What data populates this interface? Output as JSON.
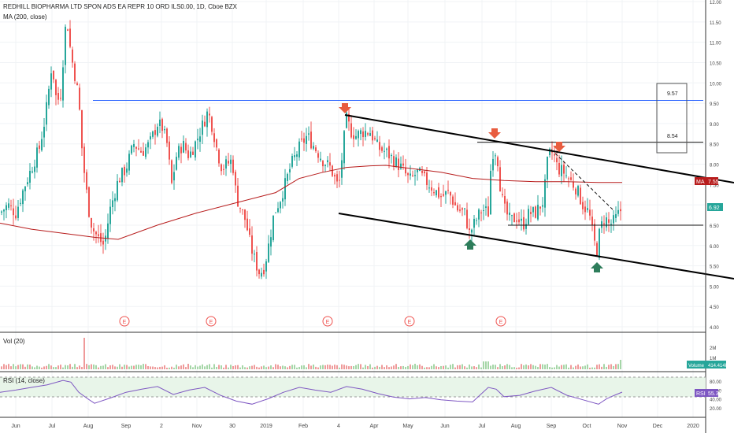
{
  "header": {
    "title": "REDHILL BIOPHARMA LTD SPON ADS EA REPR 10 ORD ILS0.00, 1D, Cboe BZX",
    "ma_label": "MA (200, close)",
    "vol_label": "Vol (20)",
    "rsi_label": "RSI (14, close)"
  },
  "colors": {
    "up": "#26a69a",
    "down": "#ef5350",
    "ma": "#b71c1c",
    "rsi": "#7e57c2",
    "level": "#1e88e5",
    "arrow_down": "#e85c3f",
    "arrow_up": "#2e7d5b"
  },
  "chart_data": {
    "type": "candlestick",
    "title": "REDHILL BIOPHARMA LTD SPON ADS EA REPR 10 ORD ILS0.00, 1D, Cboe BZX",
    "x_labels": [
      "Jun",
      "Jul",
      "Aug",
      "Sep",
      "2",
      "Nov",
      "30",
      "2019",
      "Feb",
      "4",
      "Apr",
      "May",
      "Jun",
      "Jul",
      "Aug",
      "Sep",
      "Oct",
      "Nov",
      "Dec",
      "2020"
    ],
    "y_ticks": [
      "12.00",
      "11.50",
      "11.00",
      "10.50",
      "10.00",
      "9.50",
      "9.00",
      "8.50",
      "8.00",
      "7.50",
      "7.00",
      "6.50",
      "6.00",
      "5.50",
      "5.00",
      "4.50",
      "4.00"
    ],
    "ylim": [
      4.0,
      12.0
    ],
    "close_path": [
      [
        0,
        6.8
      ],
      [
        10,
        7.0
      ],
      [
        20,
        6.8
      ],
      [
        30,
        7.4
      ],
      [
        40,
        7.9
      ],
      [
        50,
        8.4
      ],
      [
        56,
        9.0
      ],
      [
        60,
        9.5
      ],
      [
        66,
        10.5
      ],
      [
        72,
        9.5
      ],
      [
        78,
        9.8
      ],
      [
        82,
        11.3
      ],
      [
        86,
        11.4
      ],
      [
        90,
        10.7
      ],
      [
        95,
        10.2
      ],
      [
        100,
        9.6
      ],
      [
        104,
        8.4
      ],
      [
        108,
        7.6
      ],
      [
        114,
        6.7
      ],
      [
        118,
        6.4
      ],
      [
        124,
        6.2
      ],
      [
        132,
        6.0
      ],
      [
        140,
        6.9
      ],
      [
        150,
        7.6
      ],
      [
        160,
        7.9
      ],
      [
        170,
        8.5
      ],
      [
        180,
        8.3
      ],
      [
        190,
        8.5
      ],
      [
        200,
        9.0
      ],
      [
        206,
        8.9
      ],
      [
        212,
        8.5
      ],
      [
        218,
        7.5
      ],
      [
        224,
        8.2
      ],
      [
        232,
        8.5
      ],
      [
        240,
        8.2
      ],
      [
        250,
        8.6
      ],
      [
        258,
        9.0
      ],
      [
        264,
        9.3
      ],
      [
        270,
        8.9
      ],
      [
        276,
        8.3
      ],
      [
        282,
        7.9
      ],
      [
        288,
        8.0
      ],
      [
        295,
        8.1
      ],
      [
        300,
        7.2
      ],
      [
        306,
        6.9
      ],
      [
        312,
        6.6
      ],
      [
        318,
        6.0
      ],
      [
        324,
        5.6
      ],
      [
        330,
        5.3
      ],
      [
        336,
        5.5
      ],
      [
        342,
        6.1
      ],
      [
        348,
        6.8
      ],
      [
        355,
        7.1
      ],
      [
        362,
        7.5
      ],
      [
        370,
        8.0
      ],
      [
        380,
        8.4
      ],
      [
        390,
        8.7
      ],
      [
        400,
        8.4
      ],
      [
        410,
        8.1
      ],
      [
        420,
        7.9
      ],
      [
        430,
        7.4
      ],
      [
        436,
        8.5
      ],
      [
        440,
        9.1
      ],
      [
        446,
        8.8
      ],
      [
        452,
        8.7
      ],
      [
        460,
        8.8
      ],
      [
        470,
        8.8
      ],
      [
        480,
        8.4
      ],
      [
        490,
        8.3
      ],
      [
        500,
        8.1
      ],
      [
        510,
        7.9
      ],
      [
        520,
        7.6
      ],
      [
        530,
        7.8
      ],
      [
        540,
        7.6
      ],
      [
        550,
        7.4
      ],
      [
        560,
        7.2
      ],
      [
        570,
        7.3
      ],
      [
        580,
        6.9
      ],
      [
        590,
        6.8
      ],
      [
        596,
        6.3
      ],
      [
        604,
        6.6
      ],
      [
        612,
        6.9
      ],
      [
        620,
        6.8
      ],
      [
        624,
        8.2
      ],
      [
        628,
        8.4
      ],
      [
        632,
        8.1
      ],
      [
        636,
        7.3
      ],
      [
        640,
        6.9
      ],
      [
        648,
        6.6
      ],
      [
        656,
        6.7
      ],
      [
        664,
        6.5
      ],
      [
        672,
        6.8
      ],
      [
        680,
        6.8
      ],
      [
        690,
        7.1
      ],
      [
        696,
        8.2
      ],
      [
        702,
        8.3
      ],
      [
        708,
        7.9
      ],
      [
        716,
        7.8
      ],
      [
        724,
        7.6
      ],
      [
        732,
        7.4
      ],
      [
        740,
        7.0
      ],
      [
        748,
        6.8
      ],
      [
        754,
        6.1
      ],
      [
        758,
        5.9
      ],
      [
        762,
        6.4
      ],
      [
        768,
        6.7
      ],
      [
        774,
        6.5
      ],
      [
        780,
        6.6
      ],
      [
        786,
        6.8
      ],
      [
        790,
        6.92
      ]
    ],
    "ma_200": [
      [
        0,
        6.55
      ],
      [
        40,
        6.4
      ],
      [
        80,
        6.3
      ],
      [
        120,
        6.2
      ],
      [
        150,
        6.15
      ],
      [
        200,
        6.5
      ],
      [
        250,
        6.8
      ],
      [
        300,
        7.05
      ],
      [
        350,
        7.3
      ],
      [
        380,
        7.65
      ],
      [
        410,
        7.8
      ],
      [
        440,
        7.92
      ],
      [
        470,
        7.96
      ],
      [
        490,
        7.97
      ],
      [
        520,
        7.9
      ],
      [
        560,
        7.8
      ],
      [
        600,
        7.65
      ],
      [
        640,
        7.6
      ],
      [
        680,
        7.57
      ],
      [
        720,
        7.57
      ],
      [
        760,
        7.55
      ],
      [
        790,
        7.55
      ]
    ],
    "last_close": "6.92",
    "ma_value": "7.55",
    "ma_tag": "MA",
    "horizontal_levels": [
      {
        "label": "9.57",
        "price": 9.57
      },
      {
        "label": "8.54",
        "price": 8.54
      },
      {
        "label": "6.50",
        "price": 6.5
      }
    ],
    "earnings_markers": [
      "E",
      "E",
      "E",
      "E",
      "E"
    ],
    "volume": {
      "tag": "Volume",
      "value": "414.414K",
      "ticks": [
        "2M",
        "1M"
      ]
    },
    "rsi": {
      "tag": "RSI",
      "value": "55.38",
      "ticks": [
        "80.00",
        "60.00",
        "40.00",
        "20.00"
      ],
      "path": [
        [
          0,
          55
        ],
        [
          20,
          60
        ],
        [
          40,
          66
        ],
        [
          60,
          72
        ],
        [
          80,
          82
        ],
        [
          90,
          78
        ],
        [
          100,
          55
        ],
        [
          110,
          42
        ],
        [
          120,
          30
        ],
        [
          140,
          42
        ],
        [
          160,
          55
        ],
        [
          180,
          62
        ],
        [
          200,
          68
        ],
        [
          220,
          50
        ],
        [
          240,
          60
        ],
        [
          260,
          66
        ],
        [
          280,
          48
        ],
        [
          300,
          35
        ],
        [
          320,
          28
        ],
        [
          340,
          40
        ],
        [
          360,
          55
        ],
        [
          380,
          66
        ],
        [
          400,
          60
        ],
        [
          420,
          55
        ],
        [
          440,
          68
        ],
        [
          460,
          62
        ],
        [
          480,
          52
        ],
        [
          500,
          44
        ],
        [
          520,
          40
        ],
        [
          540,
          43
        ],
        [
          560,
          38
        ],
        [
          580,
          35
        ],
        [
          600,
          33
        ],
        [
          620,
          66
        ],
        [
          630,
          62
        ],
        [
          640,
          45
        ],
        [
          660,
          48
        ],
        [
          680,
          58
        ],
        [
          700,
          66
        ],
        [
          720,
          48
        ],
        [
          740,
          38
        ],
        [
          760,
          28
        ],
        [
          770,
          40
        ],
        [
          780,
          48
        ],
        [
          790,
          55.38
        ]
      ]
    }
  }
}
